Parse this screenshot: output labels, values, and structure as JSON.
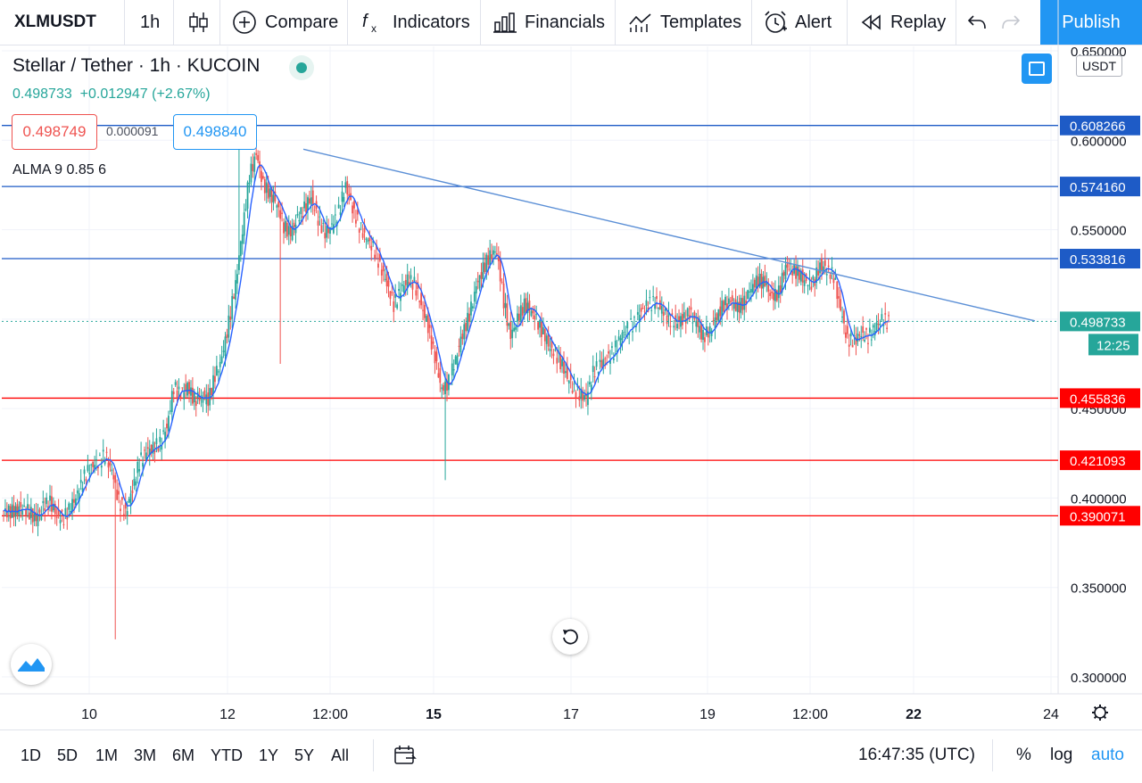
{
  "toolbar": {
    "symbol": "XLMUSDT",
    "interval": "1h",
    "compare": "Compare",
    "indicators": "Indicators",
    "financials": "Financials",
    "templates": "Templates",
    "alert": "Alert",
    "replay": "Replay",
    "publish": "Publish",
    "icons": [
      "candles-icon",
      "plus-circle-icon",
      "fx-icon",
      "bar-chart-icon",
      "templates-icon",
      "alarm-clock-icon",
      "rewind-icon",
      "undo-icon",
      "redo-icon"
    ]
  },
  "legend": {
    "title": "Stellar / Tether · 1h · KUCOIN",
    "last": "0.498733",
    "change": "+0.012947",
    "change_pct": "(+2.67%)",
    "bid": "0.498749",
    "spread": "0.000091",
    "ask": "0.498840",
    "indicator": "ALMA 9 0.85 6"
  },
  "price_scale": {
    "currency": "USDT",
    "countdown": "12:25"
  },
  "bottombar": {
    "ranges": [
      "1D",
      "5D",
      "1M",
      "3M",
      "6M",
      "YTD",
      "1Y",
      "5Y",
      "All"
    ],
    "clock": "16:47:35 (UTC)",
    "percent": "%",
    "log": "log",
    "auto": "auto"
  },
  "colors": {
    "up": "#26a69a",
    "down": "#ef5350",
    "accent": "#2196f3",
    "support": "#ff0000",
    "resistance": "#1e5bc6",
    "trendline": "#5b8fd6",
    "alma": "#2962ff"
  },
  "chart_data": {
    "type": "candlestick",
    "symbol": "XLMUSDT",
    "interval": "1h",
    "ylim": [
      0.29,
      0.655
    ],
    "x_ticks": [
      "10",
      "12",
      "12:00",
      "15",
      "17",
      "19",
      "12:00",
      "22",
      "24"
    ],
    "y_ticks": [
      "0.650000",
      "0.600000",
      "0.550000",
      "0.450000",
      "0.400000",
      "0.350000",
      "0.300000"
    ],
    "y_tick_values": [
      0.65,
      0.6,
      0.55,
      0.45,
      0.4,
      0.35,
      0.3
    ],
    "horizontal_levels": [
      {
        "value": "0.608266",
        "color": "#1e5bc6"
      },
      {
        "value": "0.574160",
        "color": "#1e5bc6"
      },
      {
        "value": "0.533816",
        "color": "#1e5bc6"
      },
      {
        "value": "0.455836",
        "color": "#ff0000"
      },
      {
        "value": "0.421093",
        "color": "#ff0000"
      },
      {
        "value": "0.390071",
        "color": "#ff0000"
      }
    ],
    "last_price": "0.498733",
    "trendline": {
      "from": 0.595,
      "to": 0.499
    },
    "price_path": [
      0.393,
      0.392,
      0.393,
      0.395,
      0.392,
      0.388,
      0.395,
      0.398,
      0.39,
      0.389,
      0.395,
      0.402,
      0.412,
      0.418,
      0.42,
      0.424,
      0.415,
      0.398,
      0.392,
      0.405,
      0.42,
      0.426,
      0.428,
      0.431,
      0.44,
      0.462,
      0.458,
      0.462,
      0.455,
      0.457,
      0.455,
      0.468,
      0.478,
      0.498,
      0.52,
      0.55,
      0.58,
      0.592,
      0.575,
      0.57,
      0.565,
      0.552,
      0.548,
      0.556,
      0.562,
      0.568,
      0.556,
      0.548,
      0.552,
      0.56,
      0.575,
      0.562,
      0.552,
      0.545,
      0.54,
      0.53,
      0.52,
      0.508,
      0.516,
      0.522,
      0.52,
      0.508,
      0.496,
      0.478,
      0.46,
      0.465,
      0.478,
      0.492,
      0.502,
      0.518,
      0.528,
      0.536,
      0.538,
      0.51,
      0.49,
      0.5,
      0.508,
      0.505,
      0.498,
      0.49,
      0.482,
      0.478,
      0.47,
      0.462,
      0.458,
      0.456,
      0.47,
      0.475,
      0.478,
      0.482,
      0.49,
      0.495,
      0.498,
      0.505,
      0.508,
      0.51,
      0.505,
      0.5,
      0.498,
      0.5,
      0.503,
      0.498,
      0.49,
      0.494,
      0.502,
      0.508,
      0.51,
      0.506,
      0.51,
      0.518,
      0.522,
      0.52,
      0.512,
      0.515,
      0.53,
      0.528,
      0.525,
      0.52,
      0.52,
      0.53,
      0.528,
      0.524,
      0.505,
      0.488,
      0.488,
      0.492,
      0.49,
      0.495,
      0.5,
      0.498
    ],
    "wicks": [
      {
        "index": 16,
        "low": 0.321
      },
      {
        "index": 40,
        "low": 0.475
      },
      {
        "index": 64,
        "low": 0.41
      },
      {
        "index": 34,
        "high": 0.61
      }
    ]
  }
}
